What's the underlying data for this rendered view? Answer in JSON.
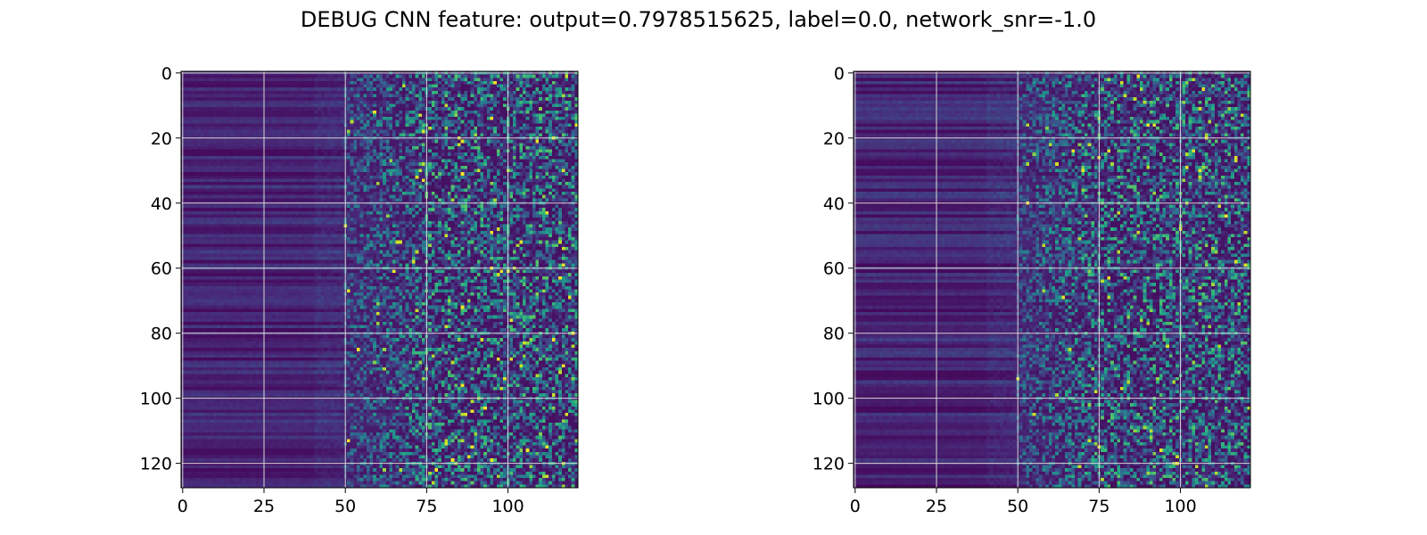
{
  "figure": {
    "title": "DEBUG CNN feature: output=0.7978515625, label=0.0, network_snr=-1.0"
  },
  "chart_data": [
    {
      "type": "heatmap",
      "rows": 128,
      "cols": 122,
      "colormap": "viridis",
      "grid": true,
      "xlim": [
        -0.5,
        121.5
      ],
      "ylim": [
        127.5,
        -0.5
      ],
      "xticks": [
        0,
        25,
        50,
        75,
        100
      ],
      "yticks": [
        0,
        20,
        40,
        60,
        80,
        100,
        120
      ],
      "xtick_labels": [
        "0",
        "25",
        "50",
        "75",
        "100"
      ],
      "ytick_labels": [
        "0",
        "20",
        "40",
        "60",
        "80",
        "100",
        "120"
      ],
      "pattern": "columns 0-50 low values with horizontal banding; columns 50-121 noisy with sparse bright pixels",
      "seed": 17
    },
    {
      "type": "heatmap",
      "rows": 128,
      "cols": 122,
      "colormap": "viridis",
      "grid": true,
      "xlim": [
        -0.5,
        121.5
      ],
      "ylim": [
        127.5,
        -0.5
      ],
      "xticks": [
        0,
        25,
        50,
        75,
        100
      ],
      "yticks": [
        0,
        20,
        40,
        60,
        80,
        100,
        120
      ],
      "xtick_labels": [
        "0",
        "25",
        "50",
        "75",
        "100"
      ],
      "ytick_labels": [
        "0",
        "20",
        "40",
        "60",
        "80",
        "100",
        "120"
      ],
      "pattern": "columns 0-50 low values with horizontal banding; columns 50-121 noisy with sparse bright pixels",
      "seed": 53
    }
  ]
}
